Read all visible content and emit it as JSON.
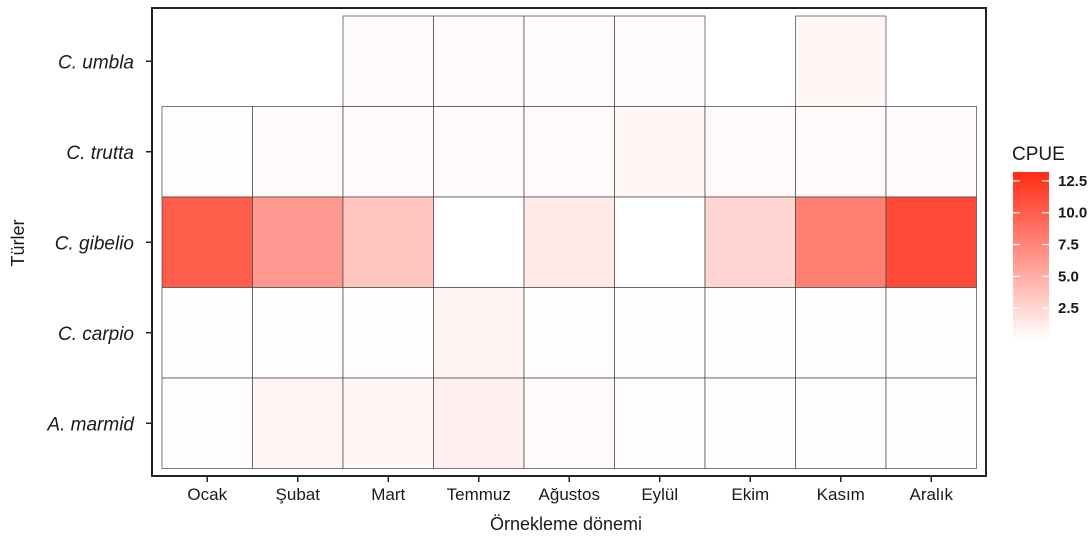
{
  "chart_data": {
    "type": "heatmap",
    "xlabel": "Örnekleme dönemi",
    "ylabel": "Türler",
    "x_categories": [
      "Ocak",
      "Şubat",
      "Mart",
      "Temmuz",
      "Ağustos",
      "Eylül",
      "Ekim",
      "Kasım",
      "Aralık"
    ],
    "y_categories": [
      "C. umbla",
      "C. trutta",
      "C. gibelio",
      "C. carpio",
      "A. marmid"
    ],
    "legend": {
      "title": "CPUE",
      "ticks": [
        "12.5",
        "10.0",
        "7.5",
        "5.0",
        "2.5"
      ],
      "tick_values": [
        12.5,
        10.0,
        7.5,
        5.0,
        2.5
      ],
      "range": [
        0,
        13.2
      ],
      "low_color": "#ffffff",
      "high_color": "#ff2a14",
      "placement": "right"
    },
    "values": [
      [
        null,
        null,
        0.3,
        0.25,
        0.2,
        0.2,
        null,
        0.5,
        null
      ],
      [
        0.15,
        0.3,
        0.35,
        0.35,
        0.35,
        0.5,
        0.35,
        0.3,
        0.25
      ],
      [
        10.0,
        6.3,
        3.6,
        0.0,
        1.3,
        0.0,
        2.6,
        7.9,
        11.2
      ],
      [
        0.05,
        0.1,
        0.15,
        0.7,
        0.15,
        0.1,
        0.05,
        0.1,
        0.15
      ],
      [
        0.15,
        0.6,
        0.45,
        0.9,
        0.35,
        0.15,
        0.1,
        0.15,
        0.15
      ]
    ]
  }
}
